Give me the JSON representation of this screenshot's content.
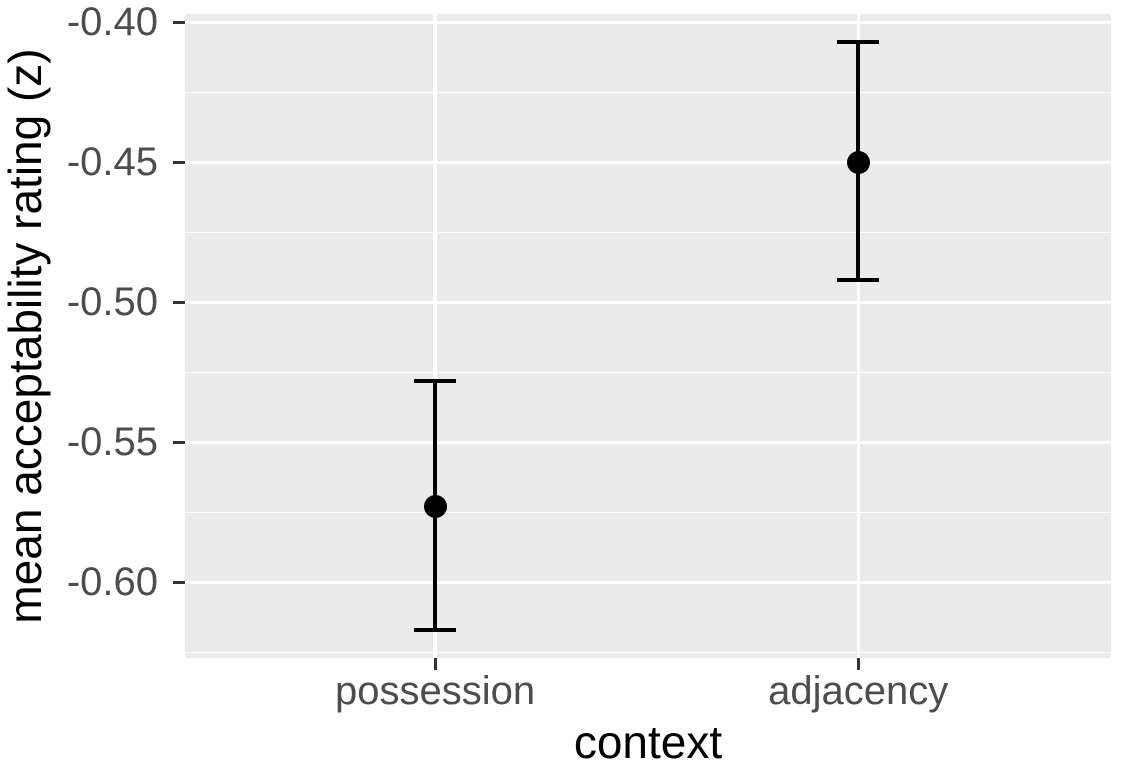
{
  "chart_data": {
    "type": "scatter",
    "subtype": "pointrange-errorbar",
    "title": "",
    "xlabel": "context",
    "ylabel": "mean acceptability rating (z)",
    "categories": [
      "possession",
      "adjacency"
    ],
    "series": [
      {
        "category": "possession",
        "mean": -0.573,
        "ci_lower": -0.617,
        "ci_upper": -0.528
      },
      {
        "category": "adjacency",
        "mean": -0.45,
        "ci_lower": -0.492,
        "ci_upper": -0.407
      }
    ],
    "yticks": [
      -0.4,
      -0.45,
      -0.5,
      -0.55,
      -0.6
    ],
    "ytick_labels": [
      "-0.40",
      "-0.45",
      "-0.50",
      "-0.55",
      "-0.60"
    ],
    "ytick_minor_step": 0.025,
    "ylim": [
      -0.627,
      -0.397
    ],
    "grid": "major-and-minor",
    "legend_position": "none"
  },
  "colors": {
    "figure_background": "#FFFFFF",
    "panel_background": "#EBEBEB",
    "grid_major": "#FFFFFF",
    "grid_minor": "#FFFFFF",
    "point": "#000000",
    "errorbar": "#000000",
    "tick_mark": "#333333",
    "tick_label": "#4D4D4D",
    "axis_title": "#000000"
  }
}
